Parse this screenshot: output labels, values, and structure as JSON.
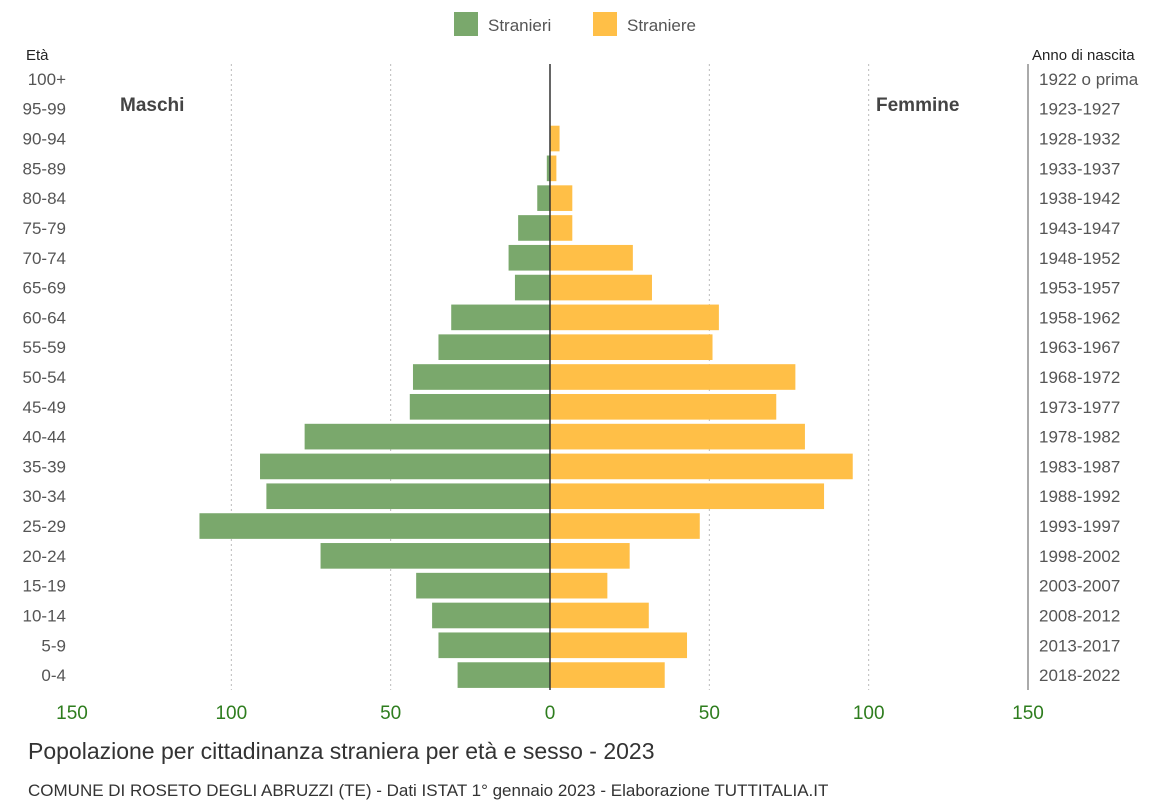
{
  "chart_data": {
    "type": "bar",
    "orientation": "horizontal-pyramid",
    "title": "Popolazione per cittadinanza straniera per età e sesso - 2023",
    "source": "COMUNE DI ROSETO DEGLI ABRUZZI (TE) - Dati ISTAT 1° gennaio 2023 - Elaborazione TUTTITALIA.IT",
    "left_axis_label": "Età",
    "right_axis_label": "Anno di nascita",
    "left_side_label": "Maschi",
    "right_side_label": "Femmine",
    "xlim": [
      -150,
      150
    ],
    "xticks": [
      "150",
      "100",
      "50",
      "0",
      "50",
      "100",
      "150"
    ],
    "xtick_values": [
      -150,
      -100,
      -50,
      0,
      50,
      100,
      150
    ],
    "grid": true,
    "legend_position": "top-center",
    "categories": [
      "100+",
      "95-99",
      "90-94",
      "85-89",
      "80-84",
      "75-79",
      "70-74",
      "65-69",
      "60-64",
      "55-59",
      "50-54",
      "45-49",
      "40-44",
      "35-39",
      "30-34",
      "25-29",
      "20-24",
      "15-19",
      "10-14",
      "5-9",
      "0-4"
    ],
    "birth_years": [
      "1922 o prima",
      "1923-1927",
      "1928-1932",
      "1933-1937",
      "1938-1942",
      "1943-1947",
      "1948-1952",
      "1953-1957",
      "1958-1962",
      "1963-1967",
      "1968-1972",
      "1973-1977",
      "1978-1982",
      "1983-1987",
      "1988-1992",
      "1993-1997",
      "1998-2002",
      "2003-2007",
      "2008-2012",
      "2013-2017",
      "2018-2022"
    ],
    "series": [
      {
        "name": "Stranieri",
        "color": "#7aa86c",
        "values": [
          0,
          0,
          0,
          1,
          4,
          10,
          13,
          11,
          31,
          35,
          43,
          44,
          77,
          91,
          89,
          110,
          72,
          42,
          37,
          35,
          29
        ]
      },
      {
        "name": "Straniere",
        "color": "#ffbf47",
        "values": [
          0,
          0,
          3,
          2,
          7,
          7,
          26,
          32,
          53,
          51,
          77,
          71,
          80,
          95,
          86,
          47,
          25,
          18,
          31,
          43,
          36
        ]
      }
    ]
  }
}
